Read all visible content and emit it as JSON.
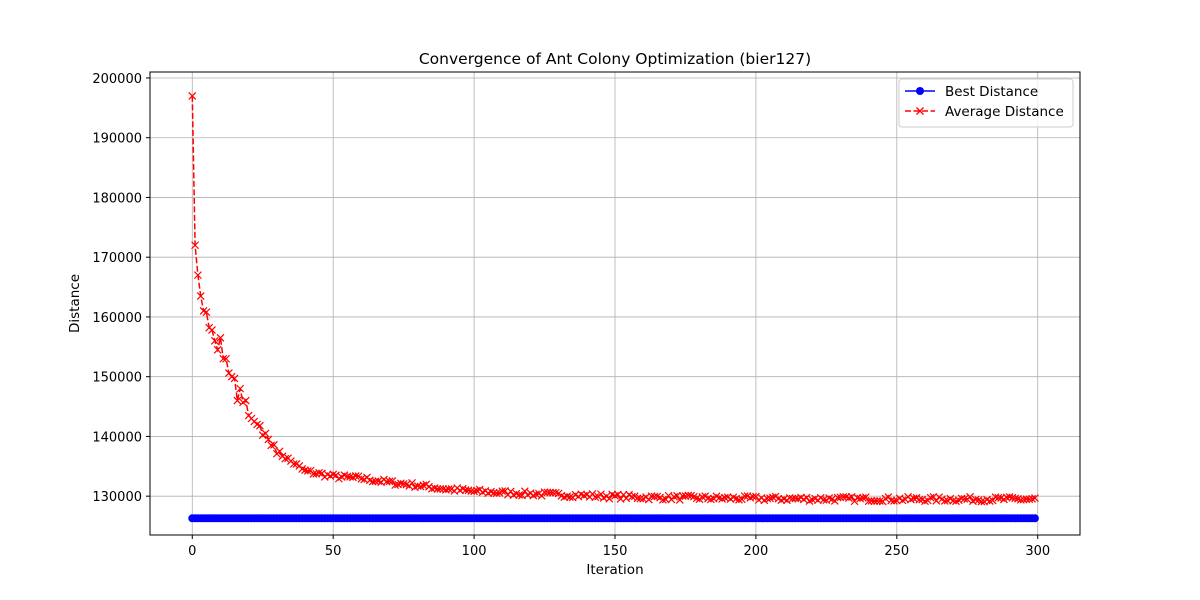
{
  "chart_data": {
    "type": "line",
    "title": "Convergence of Ant Colony Optimization (bier127)",
    "xlabel": "Iteration",
    "ylabel": "Distance",
    "xlim": [
      -15,
      315
    ],
    "ylim": [
      123500,
      201000
    ],
    "xticks": [
      0,
      50,
      100,
      150,
      200,
      250,
      300
    ],
    "yticks": [
      130000,
      140000,
      150000,
      160000,
      170000,
      180000,
      190000,
      200000
    ],
    "grid": true,
    "legend_position": "top-right",
    "x_range": [
      0,
      299
    ],
    "series": [
      {
        "name": "Best Distance",
        "color": "#0000ff",
        "line_style": "solid",
        "marker": "circle",
        "constant_value": 126300
      },
      {
        "name": "Average Distance",
        "color": "#ff0000",
        "line_style": "dashed",
        "marker": "x",
        "values_first_30": [
          197000,
          172000,
          167000,
          163500,
          161000,
          160800,
          158200,
          157800,
          156000,
          154500,
          156500,
          153000,
          153000,
          150600,
          150000,
          149700,
          146000,
          148000,
          145700,
          146000,
          143500,
          143000,
          142500,
          142000,
          141800,
          140200,
          140500,
          139500,
          138500,
          138600
        ],
        "plateau": {
          "points": [
            [
              30,
              137500
            ],
            [
              40,
              134200
            ],
            [
              50,
              133300
            ],
            [
              60,
              133000
            ],
            [
              70,
              132300
            ],
            [
              80,
              131800
            ],
            [
              90,
              131200
            ],
            [
              100,
              130800
            ],
            [
              120,
              130400
            ],
            [
              140,
              130100
            ],
            [
              160,
              129800
            ],
            [
              200,
              129600
            ],
            [
              250,
              129500
            ],
            [
              299,
              129500
            ]
          ],
          "noise": 400
        }
      }
    ]
  }
}
